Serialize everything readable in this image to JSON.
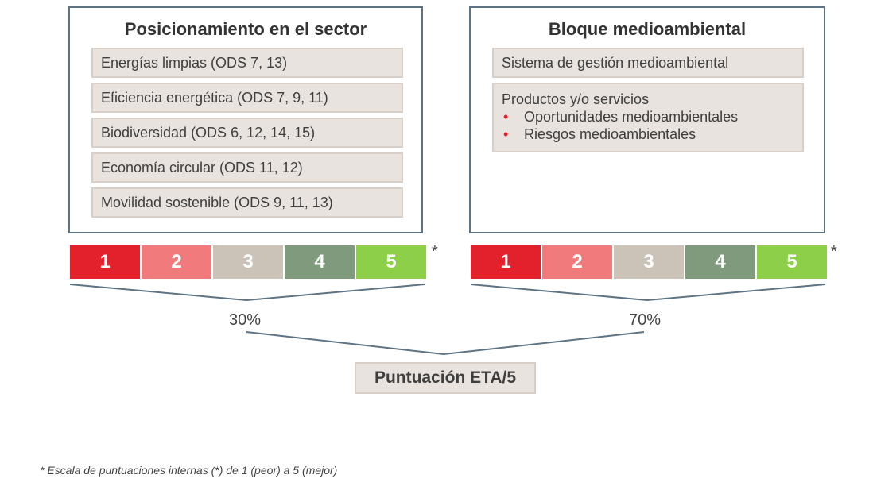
{
  "left_panel": {
    "title": "Posicionamiento en el sector",
    "items": [
      "Energías limpias (ODS 7, 13)",
      "Eficiencia energética (ODS 7, 9, 11)",
      "Biodiversidad (ODS 6, 12, 14, 15)",
      "Economía circular (ODS 11, 12)",
      "Movilidad sostenible (ODS 9, 11, 13)"
    ]
  },
  "right_panel": {
    "title": "Bloque medioambiental",
    "item1": "Sistema de gestión medioambiental",
    "item2_heading": "Productos y/o servicios",
    "item2_bullets": [
      "Oportunidades medioambientales",
      "Riesgos medioambientales"
    ]
  },
  "scale": {
    "labels": [
      "1",
      "2",
      "3",
      "4",
      "5"
    ],
    "colors": [
      "#e3212d",
      "#f07a7c",
      "#ccc3b8",
      "#7f9a7c",
      "#8dcf48"
    ],
    "asterisk": "*"
  },
  "weights": {
    "left": "30%",
    "right": "70%"
  },
  "result": "Puntuación ETA/5",
  "footnote": "* Escala de puntuaciones internas (*) de 1 (peor) a 5 (mejor)"
}
